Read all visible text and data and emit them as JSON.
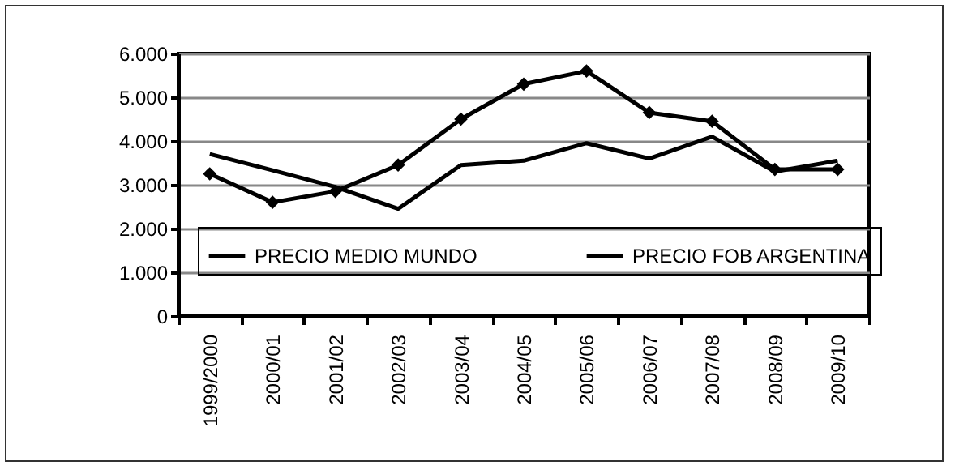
{
  "chart_data": {
    "type": "line",
    "categories": [
      "1999/2000",
      "2000/01",
      "2001/02",
      "2002/03",
      "2003/04",
      "2004/05",
      "2005/06",
      "2006/07",
      "2007/08",
      "2008/09",
      "2009/10"
    ],
    "series": [
      {
        "name": "PRECIO MEDIO MUNDO",
        "color": "#000000",
        "marker": "diamond",
        "values": [
          3250,
          2600,
          2850,
          3450,
          4500,
          5300,
          5600,
          4650,
          4450,
          3350,
          3350
        ]
      },
      {
        "name": "PRECIO FOB ARGENTINA",
        "color": "#000000",
        "marker": "none",
        "values": [
          3700,
          3330,
          2950,
          2450,
          3450,
          3550,
          3950,
          3600,
          4100,
          3300,
          3550
        ]
      }
    ],
    "ylim": [
      0,
      6000
    ],
    "yticks": [
      {
        "value": 0,
        "label": "0"
      },
      {
        "value": 1000,
        "label": "1.000"
      },
      {
        "value": 2000,
        "label": "2.000"
      },
      {
        "value": 3000,
        "label": "3.000"
      },
      {
        "value": 4000,
        "label": "4.000"
      },
      {
        "value": 5000,
        "label": "5.000"
      },
      {
        "value": 6000,
        "label": "6.000"
      }
    ],
    "grid": "y",
    "legend": "bottom"
  }
}
